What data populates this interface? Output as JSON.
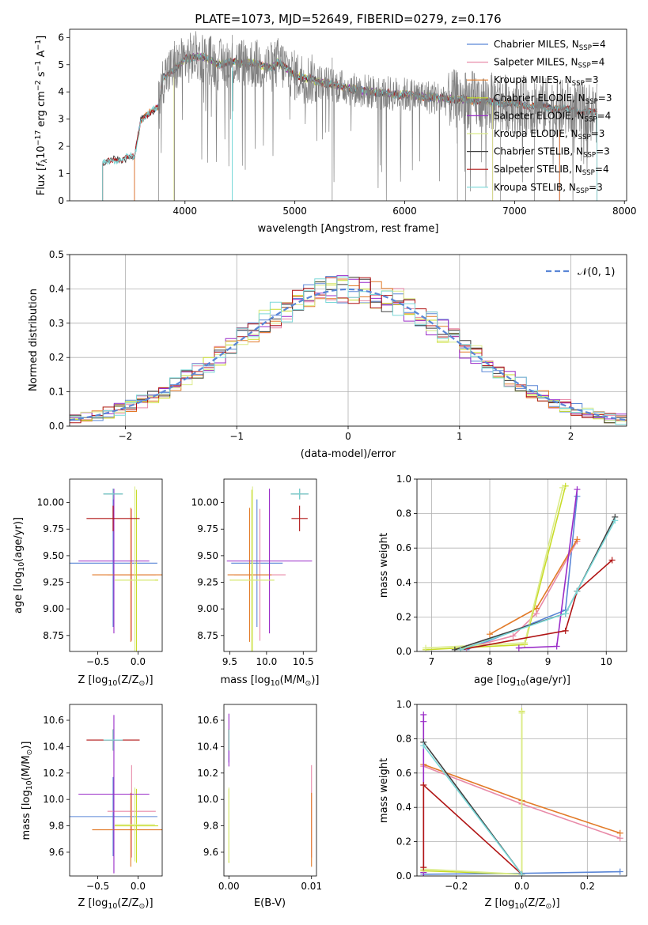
{
  "title": "PLATE=1073, MJD=52649, FIBERID=0279, z=0.176",
  "colors": {
    "Chabrier MILES": "#5a86d6",
    "Salpeter MILES": "#e88aa8",
    "Kroupa MILES": "#e27a28",
    "Chabrier ELODIE": "#c8dc28",
    "Salpeter ELODIE": "#9a2cc8",
    "Kroupa ELODIE": "#dcec8c",
    "Chabrier STELIB": "#404040",
    "Salpeter STELIB": "#b01414",
    "Kroupa STELIB": "#7ad8d8",
    "data": "#808080"
  },
  "chart_data": [
    {
      "id": "spectrum",
      "type": "line",
      "xlabel": "wavelength [Angstrom, rest frame]",
      "ylabel_parts": [
        "Flux [",
        "f",
        "λ",
        "10",
        "−17",
        " erg cm",
        "−2",
        " s",
        "−1",
        " A",
        "−1",
        "]"
      ],
      "xlim": [
        2950,
        8020
      ],
      "ylim": [
        0,
        6.3
      ],
      "xticks": [
        4000,
        5000,
        6000,
        7000,
        8000
      ],
      "yticks": [
        0,
        1,
        2,
        3,
        4,
        5,
        6
      ],
      "legend_position": "upper right",
      "legend": [
        {
          "series": "Chabrier MILES",
          "name": "Chabrier MILES, N",
          "sub": "SSP",
          "tail": "=4"
        },
        {
          "series": "Salpeter MILES",
          "name": "Salpeter MILES, N",
          "sub": "SSP",
          "tail": "=4"
        },
        {
          "series": "Kroupa MILES",
          "name": "Kroupa MILES, N",
          "sub": "SSP",
          "tail": "=3"
        },
        {
          "series": "Chabrier ELODIE",
          "name": "Chabrier ELODIE, N",
          "sub": "SSP",
          "tail": "=3"
        },
        {
          "series": "Salpeter ELODIE",
          "name": "Salpeter ELODIE, N",
          "sub": "SSP",
          "tail": "=4"
        },
        {
          "series": "Kroupa ELODIE",
          "name": "Kroupa ELODIE, N",
          "sub": "SSP",
          "tail": "=3"
        },
        {
          "series": "Chabrier STELIB",
          "name": "Chabrier STELIB, N",
          "sub": "SSP",
          "tail": "=3"
        },
        {
          "series": "Salpeter STELIB",
          "name": "Salpeter STELIB, N",
          "sub": "SSP",
          "tail": "=4"
        },
        {
          "series": "Kroupa STELIB",
          "name": "Kroupa STELIB, N",
          "sub": "SSP",
          "tail": "=3"
        }
      ],
      "continuum": [
        [
          3250,
          1.35
        ],
        [
          3350,
          1.5
        ],
        [
          3450,
          1.55
        ],
        [
          3500,
          1.62
        ],
        [
          3540,
          1.58
        ],
        [
          3600,
          3.0
        ],
        [
          3700,
          3.3
        ],
        [
          3760,
          3.4
        ],
        [
          3800,
          4.5
        ],
        [
          3850,
          4.7
        ],
        [
          3950,
          5.0
        ],
        [
          4000,
          5.2
        ],
        [
          4100,
          5.3
        ],
        [
          4200,
          5.25
        ],
        [
          4300,
          5.0
        ],
        [
          4400,
          5.1
        ],
        [
          4600,
          5.05
        ],
        [
          4800,
          4.9
        ],
        [
          4850,
          5.1
        ],
        [
          5000,
          4.6
        ],
        [
          5200,
          4.4
        ],
        [
          5400,
          4.2
        ],
        [
          5600,
          4.05
        ],
        [
          5800,
          3.95
        ],
        [
          6000,
          3.9
        ],
        [
          6200,
          3.82
        ],
        [
          6400,
          3.75
        ],
        [
          6600,
          3.7
        ],
        [
          6800,
          3.62
        ],
        [
          7000,
          3.55
        ],
        [
          7200,
          3.48
        ],
        [
          7400,
          3.4
        ],
        [
          7600,
          3.3
        ],
        [
          7750,
          3.22
        ]
      ],
      "model_ranges": {
        "Chabrier MILES": [
          3540,
          7410
        ],
        "Salpeter MILES": [
          3540,
          7410
        ],
        "Kroupa MILES": [
          3540,
          7410
        ],
        "Chabrier ELODIE": [
          3900,
          6800
        ],
        "Salpeter ELODIE": [
          3900,
          6800
        ],
        "Kroupa ELODIE": [
          3900,
          6800
        ],
        "Chabrier STELIB": [
          3250,
          7750
        ],
        "Salpeter STELIB": [
          3250,
          7750
        ],
        "Kroupa STELIB": [
          3250,
          7750
        ]
      },
      "data_range": [
        3760,
        7750
      ]
    },
    {
      "id": "residuals",
      "type": "line",
      "xlabel": "(data-model)/error",
      "ylabel": "Normed distribution",
      "xlim": [
        -2.5,
        2.5
      ],
      "ylim": [
        0,
        0.5
      ],
      "xticks": [
        -2,
        -1,
        0,
        1,
        2
      ],
      "yticks": [
        0.0,
        0.1,
        0.2,
        0.3,
        0.4,
        0.5
      ],
      "grid": true,
      "legend_position": "upper right",
      "legend_label": "𝒩(0, 1)",
      "bin_width": 0.1,
      "reference_curve": "normal(0,1)"
    },
    {
      "id": "age_vs_Z",
      "type": "scatter",
      "xlabel_main": "Z [log",
      "xlabel_sub": "10",
      "xlabel_tail": "(Z/Z",
      "xlabel_sun": "⊙",
      "xlabel_end": ")]",
      "ylabel_main": "age  [log",
      "ylabel_sub": "10",
      "ylabel_tail": "(age/yr)]",
      "xlim": [
        -0.85,
        0.3
      ],
      "ylim": [
        8.6,
        10.22
      ],
      "xticks": [
        -0.5,
        0.0
      ],
      "yticks": [
        8.75,
        9.0,
        9.25,
        9.5,
        9.75,
        10.0
      ],
      "points": [
        {
          "series": "Chabrier MILES",
          "x": -0.31,
          "y": 9.43,
          "xerr": 0.55,
          "yerr": 0.6
        },
        {
          "series": "Salpeter MILES",
          "x": -0.08,
          "y": 9.32,
          "xerr": 0.3,
          "yerr": 0.62
        },
        {
          "series": "Kroupa MILES",
          "x": -0.09,
          "y": 9.32,
          "xerr": 0.48,
          "yerr": 0.63
        },
        {
          "series": "Chabrier ELODIE",
          "x": -0.02,
          "y": 9.27,
          "xerr": 0.27,
          "yerr": 0.85
        },
        {
          "series": "Salpeter ELODIE",
          "x": -0.3,
          "y": 9.45,
          "xerr": 0.44,
          "yerr": 0.68
        },
        {
          "series": "Kroupa ELODIE",
          "x": -0.04,
          "y": 9.27,
          "xerr": 0.25,
          "yerr": 0.88
        },
        {
          "series": "Chabrier STELIB",
          "x": -0.31,
          "y": 10.08,
          "xerr": 0.12,
          "yerr": 0.05
        },
        {
          "series": "Salpeter STELIB",
          "x": -0.31,
          "y": 9.85,
          "xerr": 0.33,
          "yerr": 0.12
        },
        {
          "series": "Kroupa STELIB",
          "x": -0.31,
          "y": 10.08,
          "xerr": 0.12,
          "yerr": 0.05
        }
      ]
    },
    {
      "id": "age_vs_mass",
      "type": "scatter",
      "xlabel_main": "mass [log",
      "xlabel_sub": "10",
      "xlabel_tail": "(M/M",
      "xlabel_sun": "⊙",
      "xlabel_end": ")]",
      "xlim": [
        9.42,
        10.68
      ],
      "ylim": [
        8.6,
        10.22
      ],
      "xticks": [
        9.5,
        10.0,
        10.5
      ],
      "yticks": [
        8.75,
        9.0,
        9.25,
        9.5,
        9.75,
        10.0
      ],
      "points": [
        {
          "series": "Chabrier MILES",
          "x": 9.87,
          "y": 9.43,
          "xerr": 0.35,
          "yerr": 0.6
        },
        {
          "series": "Salpeter MILES",
          "x": 9.91,
          "y": 9.32,
          "xerr": 0.35,
          "yerr": 0.62
        },
        {
          "series": "Kroupa MILES",
          "x": 9.77,
          "y": 9.32,
          "xerr": 0.3,
          "yerr": 0.63
        },
        {
          "series": "Chabrier ELODIE",
          "x": 9.8,
          "y": 9.27,
          "xerr": 0.3,
          "yerr": 0.85
        },
        {
          "series": "Salpeter ELODIE",
          "x": 10.04,
          "y": 9.45,
          "xerr": 0.58,
          "yerr": 0.68
        },
        {
          "series": "Kroupa ELODIE",
          "x": 9.81,
          "y": 9.27,
          "xerr": 0.3,
          "yerr": 0.88
        },
        {
          "series": "Chabrier STELIB",
          "x": 10.45,
          "y": 10.08,
          "xerr": 0.12,
          "yerr": 0.05
        },
        {
          "series": "Salpeter STELIB",
          "x": 10.45,
          "y": 9.85,
          "xerr": 0.11,
          "yerr": 0.12
        },
        {
          "series": "Kroupa STELIB",
          "x": 10.45,
          "y": 10.08,
          "xerr": 0.12,
          "yerr": 0.05
        }
      ]
    },
    {
      "id": "cumulative_mass_age",
      "type": "line",
      "xlabel_main": "age  [log",
      "xlabel_sub": "10",
      "xlabel_tail": "(age/yr)]",
      "ylabel": "mass weight",
      "xlim": [
        6.75,
        10.35
      ],
      "ylim": [
        0,
        1.0
      ],
      "xticks": [
        7,
        8,
        9,
        10
      ],
      "yticks": [
        0.0,
        0.2,
        0.4,
        0.6,
        0.8,
        1.0
      ],
      "grid": true,
      "series": [
        {
          "name": "Chabrier MILES",
          "x": [
            7.6,
            9.3,
            9.5
          ],
          "y": [
            0.01,
            0.24,
            0.9
          ]
        },
        {
          "name": "Salpeter MILES",
          "x": [
            7.6,
            8.4,
            8.8,
            9.5
          ],
          "y": [
            0.02,
            0.09,
            0.22,
            0.64
          ]
        },
        {
          "name": "Kroupa MILES",
          "x": [
            8.0,
            8.8,
            9.5
          ],
          "y": [
            0.1,
            0.25,
            0.65
          ]
        },
        {
          "name": "Chabrier ELODIE",
          "x": [
            6.9,
            8.6,
            9.3
          ],
          "y": [
            0.01,
            0.04,
            0.96
          ]
        },
        {
          "name": "Salpeter ELODIE",
          "x": [
            8.5,
            9.15,
            9.5
          ],
          "y": [
            0.02,
            0.03,
            0.94
          ]
        },
        {
          "name": "Kroupa ELODIE",
          "x": [
            6.9,
            8.6,
            9.25
          ],
          "y": [
            0.02,
            0.05,
            0.95
          ]
        },
        {
          "name": "Chabrier STELIB",
          "x": [
            7.4,
            9.3,
            9.5,
            10.15
          ],
          "y": [
            0.01,
            0.22,
            0.35,
            0.78
          ]
        },
        {
          "name": "Salpeter STELIB",
          "x": [
            7.5,
            9.3,
            9.5,
            10.1
          ],
          "y": [
            0.01,
            0.12,
            0.35,
            0.53
          ]
        },
        {
          "name": "Kroupa STELIB",
          "x": [
            7.5,
            9.3,
            9.5,
            10.15
          ],
          "y": [
            0.01,
            0.22,
            0.35,
            0.76
          ]
        }
      ]
    },
    {
      "id": "mass_vs_Z",
      "type": "scatter",
      "xlabel_main": "Z [log",
      "xlabel_sub": "10",
      "xlabel_tail": "(Z/Z",
      "xlabel_sun": "⊙",
      "xlabel_end": ")]",
      "ylabel_main": "mass [log",
      "ylabel_sub": "10",
      "ylabel_tail": "(M/M",
      "ylabel_sun": "⊙",
      "ylabel_end": ")]",
      "xlim": [
        -0.85,
        0.3
      ],
      "ylim": [
        9.42,
        10.72
      ],
      "xticks": [
        -0.5,
        0.0
      ],
      "yticks": [
        9.6,
        9.8,
        10.0,
        10.2,
        10.4,
        10.6
      ],
      "points": [
        {
          "series": "Chabrier MILES",
          "x": -0.31,
          "y": 9.87,
          "xerr": 0.55,
          "yerr": 0.3
        },
        {
          "series": "Salpeter MILES",
          "x": -0.08,
          "y": 9.91,
          "xerr": 0.3,
          "yerr": 0.35
        },
        {
          "series": "Kroupa MILES",
          "x": -0.09,
          "y": 9.77,
          "xerr": 0.48,
          "yerr": 0.28
        },
        {
          "series": "Chabrier ELODIE",
          "x": -0.02,
          "y": 9.8,
          "xerr": 0.27,
          "yerr": 0.28
        },
        {
          "series": "Salpeter ELODIE",
          "x": -0.3,
          "y": 10.04,
          "xerr": 0.44,
          "yerr": 0.6
        },
        {
          "series": "Kroupa ELODIE",
          "x": -0.04,
          "y": 9.81,
          "xerr": 0.25,
          "yerr": 0.28
        },
        {
          "series": "Chabrier STELIB",
          "x": -0.31,
          "y": 10.45,
          "xerr": 0.12,
          "yerr": 0.08
        },
        {
          "series": "Salpeter STELIB",
          "x": -0.31,
          "y": 10.45,
          "xerr": 0.33,
          "yerr": 0.08
        },
        {
          "series": "Kroupa STELIB",
          "x": -0.31,
          "y": 10.45,
          "xerr": 0.12,
          "yerr": 0.08
        }
      ]
    },
    {
      "id": "mass_vs_ebv",
      "type": "scatter",
      "xlabel": "E(B-V)",
      "xlim": [
        -0.0006,
        0.0106
      ],
      "ylim": [
        9.42,
        10.72
      ],
      "xticks": [
        0.0,
        0.01
      ],
      "xtick_labels": [
        "0.00",
        "0.01"
      ],
      "yticks": [
        9.6,
        9.8,
        10.0,
        10.2,
        10.4,
        10.6
      ],
      "points": [
        {
          "series": "Chabrier MILES",
          "x": 0.0,
          "y": 10.4,
          "yerr": 0.12
        },
        {
          "series": "Salpeter MILES",
          "x": 0.01,
          "y": 9.91,
          "yerr": 0.35
        },
        {
          "series": "Kroupa MILES",
          "x": 0.01,
          "y": 9.77,
          "yerr": 0.28
        },
        {
          "series": "Chabrier ELODIE",
          "x": 0.0,
          "y": 9.8,
          "yerr": 0.28
        },
        {
          "series": "Salpeter ELODIE",
          "x": 0.0,
          "y": 10.45,
          "yerr": 0.2
        },
        {
          "series": "Kroupa ELODIE",
          "x": 0.0,
          "y": 9.81,
          "yerr": 0.28
        },
        {
          "series": "Chabrier STELIB",
          "x": 0.0,
          "y": 10.45,
          "yerr": 0.08
        },
        {
          "series": "Salpeter STELIB",
          "x": 0.0,
          "y": 10.45,
          "yerr": 0.08
        },
        {
          "series": "Kroupa STELIB",
          "x": 0.0,
          "y": 10.45,
          "yerr": 0.08
        }
      ]
    },
    {
      "id": "cumulative_mass_Z",
      "type": "line",
      "xlabel_main": "Z [log",
      "xlabel_sub": "10",
      "xlabel_tail": "(Z/Z",
      "xlabel_sun": "⊙",
      "xlabel_end": ")]",
      "ylabel": "mass weight",
      "xlim": [
        -0.32,
        0.32
      ],
      "ylim": [
        0,
        1.0
      ],
      "xticks": [
        -0.2,
        0.0,
        0.2
      ],
      "yticks": [
        0.0,
        0.2,
        0.4,
        0.6,
        0.8,
        1.0
      ],
      "grid": true,
      "series": [
        {
          "name": "Chabrier MILES",
          "x": [
            -0.3,
            0.0,
            0.3
          ],
          "y": [
            0.01,
            0.015,
            0.025
          ]
        },
        {
          "name": "Salpeter MILES",
          "x": [
            -0.3,
            0.0,
            0.3
          ],
          "y": [
            0.64,
            0.42,
            0.22
          ]
        },
        {
          "name": "Kroupa MILES",
          "x": [
            -0.3,
            0.0,
            0.3
          ],
          "y": [
            0.65,
            0.44,
            0.25
          ]
        },
        {
          "name": "Chabrier ELODIE",
          "x": [
            -0.3,
            0.0,
            0.0
          ],
          "y": [
            0.03,
            0.01,
            0.96
          ]
        },
        {
          "name": "Salpeter ELODIE",
          "x": [
            -0.3,
            -0.3,
            -0.3
          ],
          "y": [
            0.02,
            0.9,
            0.94
          ]
        },
        {
          "name": "Kroupa ELODIE",
          "x": [
            -0.3,
            0.0,
            0.0
          ],
          "y": [
            0.04,
            0.01,
            0.95
          ]
        },
        {
          "name": "Chabrier STELIB",
          "x": [
            -0.3,
            0.0
          ],
          "y": [
            0.78,
            0.01
          ]
        },
        {
          "name": "Salpeter STELIB",
          "x": [
            -0.3,
            -0.3,
            0.0
          ],
          "y": [
            0.05,
            0.53,
            0.01
          ]
        },
        {
          "name": "Kroupa STELIB",
          "x": [
            -0.3,
            0.0
          ],
          "y": [
            0.76,
            0.01
          ]
        }
      ]
    }
  ]
}
